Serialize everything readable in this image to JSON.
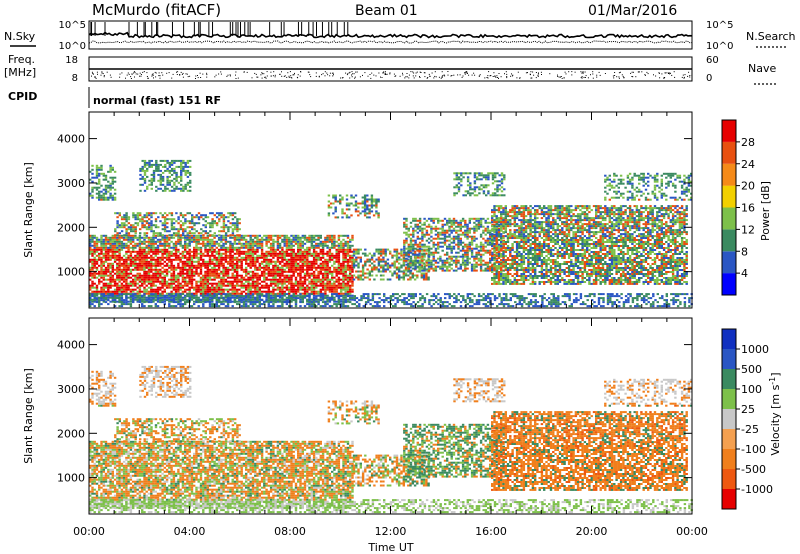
{
  "header": {
    "title": "McMurdo (fitACF)",
    "beam": "Beam 01",
    "date": "01/Mar/2016"
  },
  "strip_noise": {
    "left_label": "N.Sky",
    "right_label": "N.Search",
    "left_ticks": [
      "10^5",
      "10^0"
    ],
    "right_ticks": [
      "10^5",
      "10^0"
    ]
  },
  "strip_freq": {
    "left_label_line1": "Freq.",
    "left_label_line2": "[MHz]",
    "right_label": "Nave",
    "left_ticks": [
      "18",
      "8"
    ],
    "right_ticks": [
      "60",
      "0"
    ]
  },
  "strip_cpid": {
    "label": "CPID",
    "text": "normal (fast) 151 RF"
  },
  "chart_data": [
    {
      "type": "heatmap",
      "name": "power",
      "ylabel": "Slant Range [km]",
      "yticks": [
        1000,
        2000,
        3000,
        4000
      ],
      "ylim": [
        180,
        4600
      ],
      "colorbar_label": "Power [dB]",
      "colorbar_ticks": [
        "28",
        "24",
        "20",
        "16",
        "12",
        "8",
        "4"
      ],
      "colorbar_colors": [
        "#0000ff",
        "#2a56c4",
        "#3a8a60",
        "#7dc04a",
        "#f2d000",
        "#f58a18",
        "#e85010",
        "#e60000"
      ]
    },
    {
      "type": "heatmap",
      "name": "velocity",
      "ylabel": "Slant Range [km]",
      "yticks": [
        1000,
        2000,
        3000,
        4000
      ],
      "ylim": [
        180,
        4600
      ],
      "colorbar_label": "Velocity [m s",
      "colorbar_label_sup": "-1",
      "colorbar_label_end": "]",
      "colorbar_ticks": [
        "1000",
        "500",
        "100",
        "25",
        "-25",
        "-100",
        "-500",
        "-1000"
      ],
      "colorbar_colors": [
        "#e60000",
        "#ee5810",
        "#f07f1c",
        "#f4a050",
        "#c8c8c8",
        "#7dc04a",
        "#3a8a60",
        "#2a56c4",
        "#1030c0"
      ]
    }
  ],
  "x_axis": {
    "label": "Time UT",
    "ticks": [
      "00:00",
      "04:00",
      "08:00",
      "12:00",
      "16:00",
      "20:00",
      "00:00"
    ]
  },
  "colors": {
    "power_red": "#e60000",
    "velocity_orange": "#f07f1c",
    "velocity_gray": "#c8c8c8"
  }
}
